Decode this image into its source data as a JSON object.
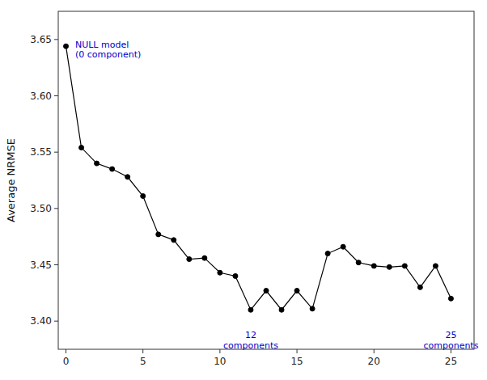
{
  "chart_data": {
    "type": "line",
    "ylabel": "Average NRMSE",
    "x": [
      0,
      1,
      2,
      3,
      4,
      5,
      6,
      7,
      8,
      9,
      10,
      11,
      12,
      13,
      14,
      15,
      16,
      17,
      18,
      19,
      20,
      21,
      22,
      23,
      24,
      25
    ],
    "values": [
      3.644,
      3.554,
      3.54,
      3.535,
      3.528,
      3.511,
      3.477,
      3.472,
      3.455,
      3.456,
      3.443,
      3.44,
      3.41,
      3.427,
      3.41,
      3.427,
      3.411,
      3.46,
      3.466,
      3.452,
      3.449,
      3.448,
      3.449,
      3.43,
      3.449,
      3.42
    ],
    "color": "black",
    "marker": "circle",
    "xlim": [
      -0.5,
      26.5
    ],
    "ylim": [
      3.375,
      3.675
    ],
    "xticks": [
      0,
      5,
      10,
      15,
      20,
      25
    ],
    "yticks": [
      {
        "value": 3.4,
        "label": "3.40"
      },
      3.45,
      {
        "value": 3.5,
        "label": "3.50"
      },
      3.55,
      {
        "value": 3.6,
        "label": "3.60"
      },
      3.65
    ],
    "annotations": [
      {
        "text": "NULL model\n(0 component)",
        "x": 0.6,
        "y": 3.65,
        "color": "#0000CC"
      },
      {
        "text": "12\ncomponents",
        "x": 12.0,
        "y": 3.392,
        "color": "#0000CC"
      },
      {
        "text": "25\ncomponents",
        "x": 25.0,
        "y": 3.392,
        "color": "#0000CC"
      }
    ]
  }
}
